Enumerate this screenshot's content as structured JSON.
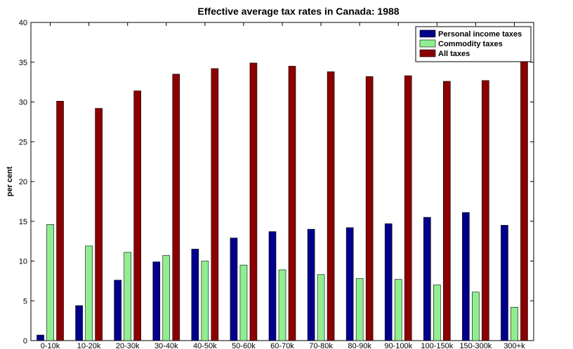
{
  "chart_data": {
    "type": "bar",
    "title": "Effective average tax rates in Canada: 1988",
    "ylabel": "per cent",
    "xlabel": "",
    "ylim": [
      0,
      40
    ],
    "yticks": [
      0,
      5,
      10,
      15,
      20,
      25,
      30,
      35,
      40
    ],
    "grid": false,
    "legend": "top-right",
    "categories": [
      "0-10k",
      "10-20k",
      "20-30k",
      "30-40k",
      "40-50k",
      "50-60k",
      "60-70k",
      "70-80k",
      "80-90k",
      "90-100k",
      "100-150k",
      "150-300k",
      "300+k"
    ],
    "series": [
      {
        "name": "Personal income taxes",
        "color": "#00008B",
        "values": [
          0.7,
          4.4,
          7.6,
          9.9,
          11.5,
          12.9,
          13.7,
          14.0,
          14.2,
          14.7,
          15.5,
          16.1,
          14.5
        ]
      },
      {
        "name": "Commodity taxes",
        "color": "#90EE90",
        "values": [
          14.6,
          11.9,
          11.1,
          10.7,
          10.0,
          9.5,
          8.9,
          8.3,
          7.8,
          7.7,
          7.0,
          6.1,
          4.2
        ]
      },
      {
        "name": "All taxes",
        "color": "#8B0000",
        "values": [
          30.1,
          29.2,
          31.4,
          33.5,
          34.2,
          34.9,
          34.5,
          33.8,
          33.2,
          33.3,
          32.6,
          32.7,
          35.3
        ]
      }
    ]
  }
}
